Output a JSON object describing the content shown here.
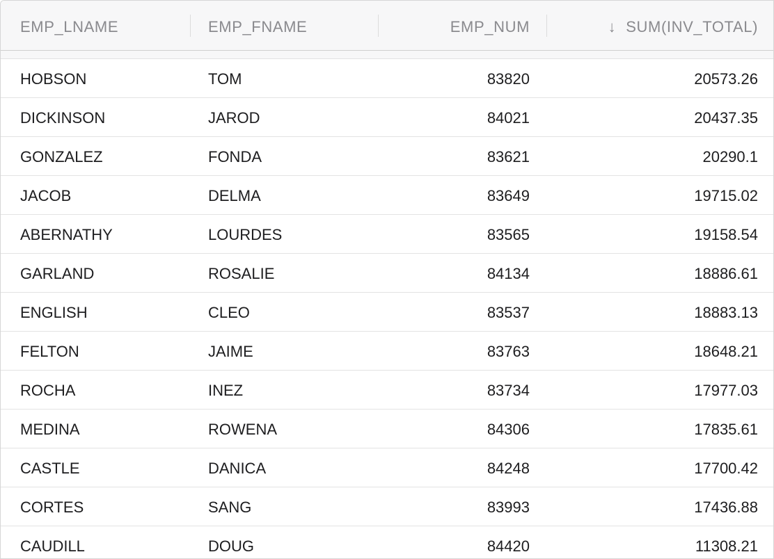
{
  "table": {
    "columns": [
      {
        "key": "emp_lname",
        "label": "EMP_LNAME"
      },
      {
        "key": "emp_fname",
        "label": "EMP_FNAME"
      },
      {
        "key": "emp_num",
        "label": "EMP_NUM"
      },
      {
        "key": "sum_inv_total",
        "label": "SUM(INV_TOTAL)",
        "sort": "descending",
        "sort_icon": "↓"
      }
    ],
    "rows": [
      {
        "emp_lname": "HOBSON",
        "emp_fname": "TOM",
        "emp_num": "83820",
        "sum_inv_total": "20573.26"
      },
      {
        "emp_lname": "DICKINSON",
        "emp_fname": "JAROD",
        "emp_num": "84021",
        "sum_inv_total": "20437.35"
      },
      {
        "emp_lname": "GONZALEZ",
        "emp_fname": "FONDA",
        "emp_num": "83621",
        "sum_inv_total": "20290.1"
      },
      {
        "emp_lname": "JACOB",
        "emp_fname": "DELMA",
        "emp_num": "83649",
        "sum_inv_total": "19715.02"
      },
      {
        "emp_lname": "ABERNATHY",
        "emp_fname": "LOURDES",
        "emp_num": "83565",
        "sum_inv_total": "19158.54"
      },
      {
        "emp_lname": "GARLAND",
        "emp_fname": "ROSALIE",
        "emp_num": "84134",
        "sum_inv_total": "18886.61"
      },
      {
        "emp_lname": "ENGLISH",
        "emp_fname": "CLEO",
        "emp_num": "83537",
        "sum_inv_total": "18883.13"
      },
      {
        "emp_lname": "FELTON",
        "emp_fname": "JAIME",
        "emp_num": "83763",
        "sum_inv_total": "18648.21"
      },
      {
        "emp_lname": "ROCHA",
        "emp_fname": "INEZ",
        "emp_num": "83734",
        "sum_inv_total": "17977.03"
      },
      {
        "emp_lname": "MEDINA",
        "emp_fname": "ROWENA",
        "emp_num": "84306",
        "sum_inv_total": "17835.61"
      },
      {
        "emp_lname": "CASTLE",
        "emp_fname": "DANICA",
        "emp_num": "84248",
        "sum_inv_total": "17700.42"
      },
      {
        "emp_lname": "CORTES",
        "emp_fname": "SANG",
        "emp_num": "83993",
        "sum_inv_total": "17436.88"
      },
      {
        "emp_lname": "CAUDILL",
        "emp_fname": "DOUG",
        "emp_num": "84420",
        "sum_inv_total": "11308.21"
      }
    ]
  },
  "colors": {
    "header_bg": "#f7f7f8",
    "header_text": "#8a8a8e",
    "cell_text": "#1d1d1f",
    "row_border": "#e3e3e3"
  }
}
